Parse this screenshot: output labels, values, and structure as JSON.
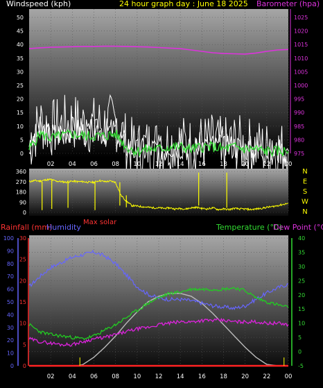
{
  "header": {
    "left_label": "Windspeed (kph)",
    "center_label": "24 hour graph day : June 18 2025",
    "right_label": "Barometer (hpa)"
  },
  "panel3_header": {
    "rainfall_label": "Rainfall (mm)",
    "humidity_label": "Humidity",
    "max_solar_label": "Max solar",
    "temperature_label": "Temperature (°C)",
    "dewpoint_label": "Dew Point (°C)"
  },
  "colors": {
    "windspeed": "#ffffff",
    "windgust": "#ffffff",
    "wind_avg": "#33dd33",
    "barometer": "#dd33dd",
    "direction": "#ffff00",
    "rainfall": "#ff2222",
    "humidity": "#6666ff",
    "max_solar": "#bbbbbb",
    "temperature": "#22cc22",
    "dewpoint": "#dd22dd",
    "title": "#ffff00",
    "axis": "#ffffff",
    "rain_axis": "#ff3333",
    "humidity_axis": "#6666ff",
    "temp_axis": "#33dd33"
  },
  "chart_data": [
    {
      "type": "line",
      "name": "windspeed_barometer",
      "x_ticks": [
        "02",
        "04",
        "06",
        "08",
        "10",
        "12",
        "14",
        "16",
        "18",
        "20",
        "22",
        "00"
      ],
      "y_left": {
        "label": "Windspeed (kph)",
        "ticks": [
          "0",
          "5",
          "10",
          "15",
          "20",
          "25",
          "30",
          "35",
          "40",
          "45",
          "50"
        ],
        "range": [
          0,
          50
        ]
      },
      "y_right": {
        "label": "Barometer (hpa)",
        "ticks": [
          "975",
          "980",
          "985",
          "990",
          "995",
          "1000",
          "1005",
          "1010",
          "1015",
          "1020",
          "1025"
        ],
        "range": [
          975,
          1025
        ]
      },
      "series": [
        {
          "name": "Windspeed",
          "axis": "left",
          "x": [
            0,
            1,
            2,
            3,
            4,
            5,
            6,
            7,
            8,
            9,
            10,
            11,
            12,
            13,
            14,
            15,
            16,
            17,
            18,
            19,
            20,
            21,
            22,
            23,
            24
          ],
          "values": [
            2,
            9,
            7,
            8,
            9,
            8,
            8,
            8,
            9,
            3,
            1,
            2,
            2,
            3,
            3,
            2,
            3,
            3,
            2,
            3,
            2,
            2,
            1,
            1,
            1
          ]
        },
        {
          "name": "Barometer",
          "axis": "right",
          "x": [
            0,
            1,
            2,
            3,
            4,
            5,
            6,
            7,
            8,
            9,
            10,
            11,
            12,
            13,
            14,
            15,
            16,
            17,
            18,
            19,
            20,
            21,
            22,
            23,
            24
          ],
          "values": [
            1013.5,
            1013.8,
            1014.0,
            1014.1,
            1014.2,
            1014.3,
            1014.3,
            1014.4,
            1014.4,
            1014.3,
            1014.2,
            1014.1,
            1013.9,
            1013.7,
            1013.5,
            1013.0,
            1012.5,
            1012.0,
            1011.7,
            1011.6,
            1011.5,
            1011.9,
            1012.5,
            1013.0,
            1013.2
          ]
        }
      ]
    },
    {
      "type": "line",
      "name": "wind_direction",
      "x_ticks": [
        "02",
        "04",
        "06",
        "08",
        "10",
        "12",
        "14",
        "16",
        "18",
        "20",
        "22",
        "00"
      ],
      "y_left": {
        "ticks": [
          "0",
          "90",
          "180",
          "270",
          "360"
        ],
        "range": [
          0,
          360
        ]
      },
      "y_right": {
        "ticks": [
          "N",
          "W",
          "S",
          "E",
          "N"
        ]
      },
      "series": [
        {
          "name": "Wind direction",
          "x": [
            0,
            0.5,
            1,
            1.5,
            2,
            2.5,
            3,
            3.5,
            4,
            4.5,
            5,
            5.5,
            6,
            6.5,
            7,
            7.5,
            8,
            8.5,
            9,
            9.5,
            10,
            10.5,
            11,
            11.5,
            12,
            12.5,
            13,
            13.5,
            14,
            14.5,
            15,
            15.5,
            16,
            16.5,
            17,
            17.5,
            18,
            18.5,
            19,
            19.5,
            20,
            20.5,
            21,
            21.5,
            22,
            22.5,
            23,
            23.5,
            24
          ],
          "values": [
            270,
            280,
            275,
            285,
            290,
            275,
            270,
            265,
            275,
            270,
            270,
            265,
            265,
            280,
            270,
            275,
            265,
            150,
            100,
            60,
            55,
            50,
            45,
            40,
            40,
            35,
            40,
            30,
            35,
            30,
            40,
            45,
            35,
            30,
            40,
            25,
            30,
            25,
            35,
            30,
            30,
            25,
            30,
            35,
            45,
            50,
            60,
            70,
            80
          ]
        }
      ]
    },
    {
      "type": "line",
      "name": "temperature_humidity_rain",
      "x_ticks": [
        "02",
        "04",
        "06",
        "08",
        "10",
        "12",
        "14",
        "16",
        "18",
        "20",
        "22",
        "00"
      ],
      "y_left_humidity": {
        "label": "Humidity",
        "ticks": [
          "0",
          "10",
          "20",
          "30",
          "40",
          "50",
          "60",
          "70",
          "80",
          "90",
          "100"
        ],
        "range": [
          0,
          100
        ]
      },
      "y_left_rain": {
        "label": "Rainfall (mm)",
        "ticks": [
          "0",
          "5",
          "10",
          "15",
          "20",
          "25",
          "30"
        ],
        "range": [
          0,
          30
        ]
      },
      "y_right": {
        "label": "Temperature (°C)",
        "ticks": [
          "-5",
          "0",
          "5",
          "10",
          "15",
          "20",
          "25",
          "30",
          "35",
          "40"
        ],
        "range": [
          -5,
          40
        ]
      },
      "series": [
        {
          "name": "Humidity",
          "axis": "humidity",
          "x": [
            0,
            1,
            2,
            3,
            4,
            5,
            6,
            7,
            8,
            9,
            10,
            11,
            12,
            13,
            14,
            15,
            16,
            17,
            18,
            19,
            20,
            21,
            22,
            23,
            24
          ],
          "values": [
            62,
            70,
            77,
            81,
            85,
            87,
            89,
            86,
            80,
            71,
            62,
            56,
            53,
            52,
            52,
            51,
            49,
            47,
            46,
            45,
            47,
            52,
            57,
            61,
            64
          ]
        },
        {
          "name": "Temperature",
          "axis": "temp",
          "x": [
            0,
            1,
            2,
            3,
            4,
            5,
            6,
            7,
            8,
            9,
            10,
            11,
            12,
            13,
            14,
            15,
            16,
            17,
            18,
            19,
            20,
            21,
            22,
            23,
            24
          ],
          "values": [
            9.5,
            7,
            6,
            5.5,
            5,
            4.5,
            5.5,
            7.5,
            9.5,
            12,
            14.5,
            17,
            19,
            20.5,
            21,
            22,
            22,
            22,
            22,
            22.5,
            21.5,
            19,
            17.5,
            16.5,
            15.5
          ]
        },
        {
          "name": "Dew Point",
          "axis": "temp",
          "x": [
            0,
            1,
            2,
            3,
            4,
            5,
            6,
            7,
            8,
            9,
            10,
            11,
            12,
            13,
            14,
            15,
            16,
            17,
            18,
            19,
            20,
            21,
            22,
            23,
            24
          ],
          "values": [
            4.5,
            3.5,
            3,
            2.5,
            2.5,
            3.5,
            4.5,
            5,
            6,
            7,
            8,
            8.5,
            9.5,
            10,
            10.5,
            10.5,
            11,
            11,
            11,
            10.5,
            10.5,
            10.5,
            10,
            10,
            9.5
          ]
        },
        {
          "name": "Max solar",
          "axis": "temp",
          "x": [
            0,
            4.5,
            5,
            6,
            7,
            8,
            9,
            10,
            11,
            12,
            13,
            14,
            15,
            16,
            17,
            18,
            19,
            20,
            21,
            22,
            23,
            24
          ],
          "values": [
            -5,
            -5,
            -4.5,
            -2,
            1.5,
            5.5,
            10,
            14,
            17.5,
            19.5,
            20.5,
            20.5,
            19.5,
            17,
            13.5,
            9.5,
            5.5,
            1.5,
            -2,
            -4.5,
            -5,
            -5
          ]
        },
        {
          "name": "Rainfall",
          "axis": "rain",
          "x": [
            0,
            24
          ],
          "values": [
            0,
            0
          ]
        }
      ]
    }
  ]
}
